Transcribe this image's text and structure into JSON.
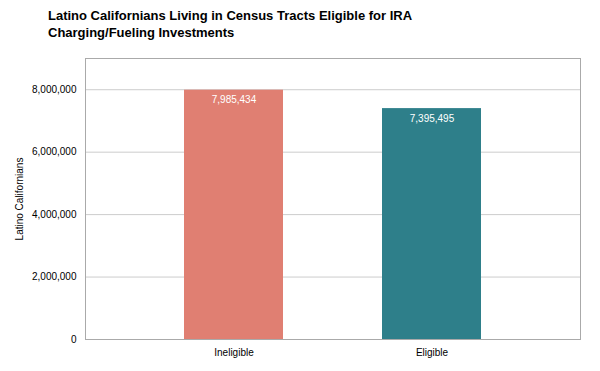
{
  "chart_data": {
    "type": "bar",
    "title": "Latino Californians Living in Census Tracts Eligible for IRA\nCharging/Fueling Investments",
    "categories": [
      "Ineligible",
      "Eligible"
    ],
    "values": [
      7985434,
      7395495
    ],
    "value_labels": [
      "7,985,434",
      "7,395,495"
    ],
    "data_labels": true,
    "colors": [
      "#E07F72",
      "#2E7F8A"
    ],
    "ylabel": "Latino Californians",
    "ylim": [
      0,
      9000000
    ],
    "yticks": [
      0,
      {
        "value": 2000000,
        "label": "2,000,000"
      },
      {
        "value": 4000000,
        "label": "4,000,000"
      },
      {
        "value": 6000000,
        "label": "6,000,000"
      },
      {
        "value": 8000000,
        "label": "8,000,000"
      }
    ],
    "grid": true
  }
}
